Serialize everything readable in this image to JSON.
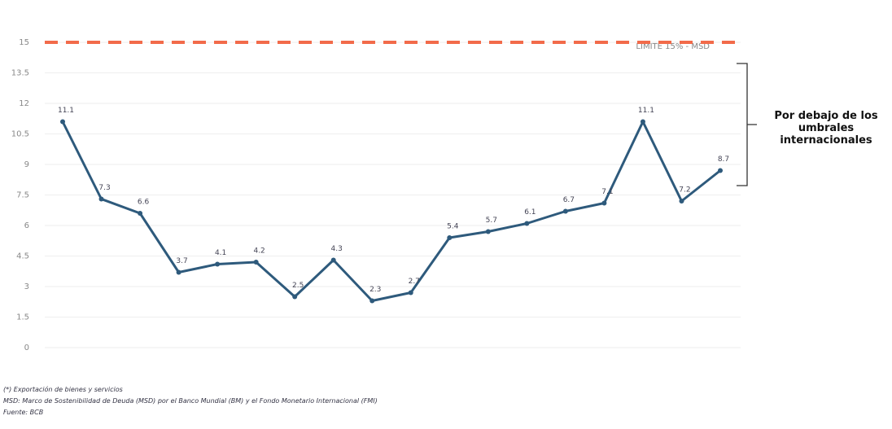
{
  "chart_data": {
    "type": "line",
    "values": [
      11.1,
      7.3,
      6.6,
      3.7,
      4.1,
      4.2,
      2.5,
      4.3,
      2.3,
      2.7,
      5.4,
      5.7,
      6.1,
      6.7,
      7.1,
      11.1,
      7.2,
      8.7
    ],
    "color": "#2e5a7c",
    "ylim": [
      0,
      15
    ],
    "yticks": [
      0,
      1.5,
      3,
      4.5,
      6,
      7.5,
      9,
      10.5,
      12,
      13.5,
      15
    ],
    "grid": true,
    "threshold": {
      "value": 15,
      "label": "LIMITE 15% - MSD",
      "color": "#f26b4a"
    },
    "annotation": "Por debajo de los umbrales internacionales",
    "notes": [
      "(*) Exportación de bienes y servicios",
      "MSD: Marco de Sostenibilidad de Deuda (MSD) por el Banco Mundial (BM) y el Fondo Monetario Internacional (FMI)",
      "Fuente: BCB"
    ]
  }
}
